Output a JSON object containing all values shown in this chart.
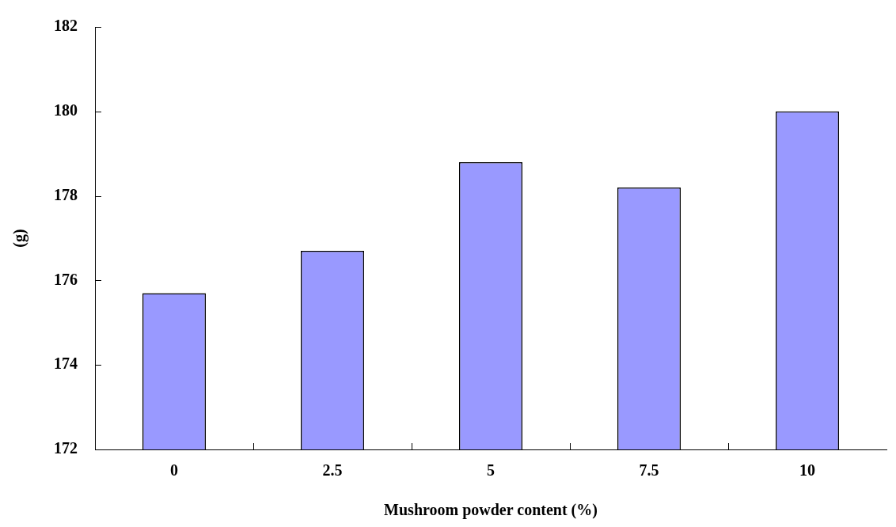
{
  "chart_data": {
    "type": "bar",
    "xlabel": "Mushroom powder content (%)",
    "ylabel": "(g)",
    "categories": [
      "0",
      "2.5",
      "5",
      "7.5",
      "10"
    ],
    "values": [
      175.7,
      176.7,
      178.8,
      178.2,
      180.0
    ],
    "color": "#9999ff",
    "ylim": [
      172,
      182
    ],
    "yticks": [
      172,
      174,
      176,
      178,
      180,
      182
    ],
    "grid": false,
    "legend": false
  }
}
